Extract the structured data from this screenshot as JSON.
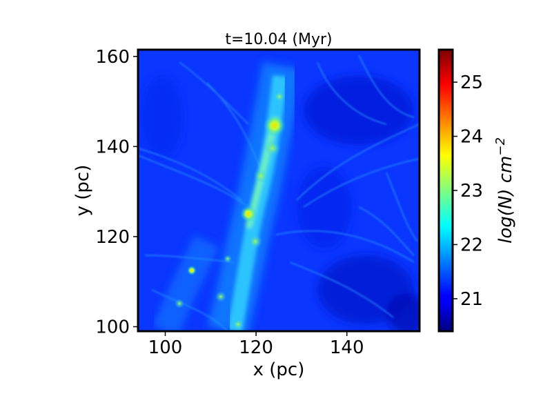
{
  "chart_data": {
    "type": "heatmap",
    "title": "t=10.04 (Myr)",
    "xlabel": "x (pc)",
    "ylabel": "y (pc)",
    "xlim": [
      94,
      156
    ],
    "ylim": [
      99,
      161.5
    ],
    "x_ticks": [
      100,
      120,
      140
    ],
    "y_ticks": [
      100,
      120,
      140,
      160
    ],
    "colorbar": {
      "label": "log(N) cm⁻²",
      "label_main": "log(N)",
      "label_unit": " cm",
      "label_exp": "−2",
      "colormap": "jet",
      "range": [
        20.4,
        25.6
      ],
      "ticks": [
        21,
        22,
        23,
        24,
        25
      ]
    },
    "features": {
      "background_level": 21.3,
      "main_filament": {
        "orientation": "north-northeast",
        "x_start": 110,
        "y_start": 99,
        "x_end": 126,
        "y_end": 153,
        "peak_level": 24.5,
        "peak_locations": [
          {
            "x": 124,
            "y": 145
          },
          {
            "x": 118,
            "y": 124
          },
          {
            "x": 105,
            "y": 112
          }
        ]
      }
    }
  }
}
